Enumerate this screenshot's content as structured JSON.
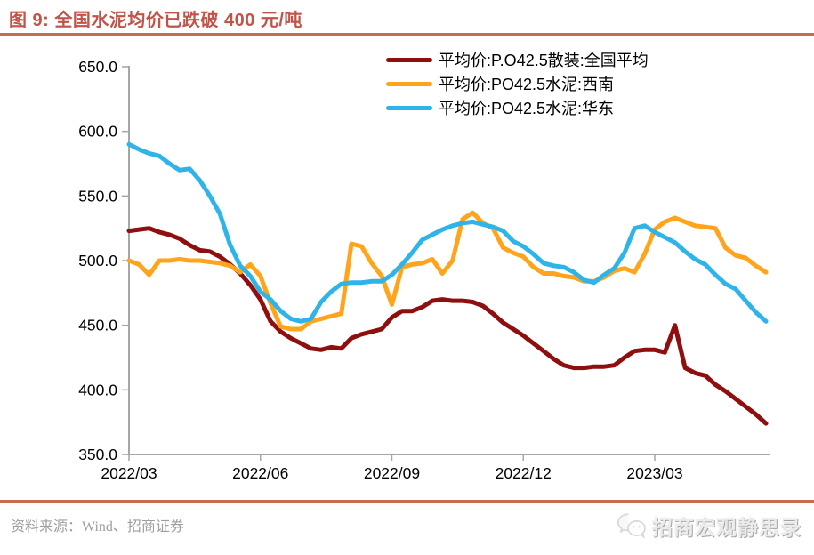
{
  "page": {
    "title": "图 9:  全国水泥均价已跌破 400 元/吨"
  },
  "footer": {
    "source": "资料来源：Wind、招商证券",
    "watermark": "招商宏观静思录",
    "wechat_icon": "wechat-chat-bubbles"
  },
  "colors": {
    "title": "#C15449",
    "divider": "#C9694F",
    "axis": "#A6A6A6",
    "tick_label": "#000000",
    "footer_text": "#9E9E9E",
    "series_national": "#8F0F0F",
    "series_southwest": "#FFA41B",
    "series_east": "#2FB4E9"
  },
  "chart_data": {
    "type": "line",
    "title": "",
    "xlabel": "",
    "ylabel": "",
    "ylim": [
      350,
      650
    ],
    "y_tick_step": 50,
    "y_tick_decimals": 1,
    "grid": false,
    "legend_position": "top-center",
    "x_tick_labels": [
      "2022/03",
      "2022/06",
      "2022/09",
      "2022/12",
      "2023/03"
    ],
    "x_tick_weeks": [
      0,
      13,
      26,
      39,
      52
    ],
    "x_unit": "week",
    "series": [
      {
        "name": "平均价:P.O42.5散装:全国平均",
        "color_key": "series_national",
        "values": [
          523,
          524,
          525,
          522,
          520,
          517,
          512,
          508,
          507,
          503,
          497,
          490,
          481,
          470,
          453,
          445,
          440,
          436,
          432,
          431,
          433,
          432,
          440,
          443,
          445,
          447,
          456,
          461,
          461,
          464,
          469,
          470,
          469,
          469,
          468,
          465,
          459,
          452,
          447,
          442,
          436,
          430,
          424,
          419,
          417,
          417,
          418,
          418,
          419,
          425,
          430,
          431,
          431,
          429,
          450,
          417,
          413,
          411,
          404,
          399,
          393,
          387,
          381,
          374
        ]
      },
      {
        "name": "平均价:PO42.5水泥:西南",
        "color_key": "series_southwest",
        "values": [
          500,
          497,
          489,
          500,
          500,
          501,
          500,
          500,
          499,
          498,
          496,
          491,
          497,
          488,
          467,
          449,
          447,
          447,
          453,
          455,
          457,
          459,
          513,
          511,
          498,
          488,
          466,
          495,
          497,
          498,
          501,
          490,
          500,
          532,
          537,
          529,
          525,
          510,
          506,
          503,
          495,
          490,
          490,
          488,
          487,
          484,
          484,
          487,
          492,
          494,
          491,
          505,
          524,
          530,
          533,
          530,
          527,
          526,
          525,
          510,
          504,
          502,
          496,
          491
        ]
      },
      {
        "name": "平均价:PO42.5水泥:华东",
        "color_key": "series_east",
        "values": [
          590,
          586,
          583,
          581,
          575,
          570,
          571,
          562,
          550,
          536,
          512,
          496,
          488,
          476,
          470,
          461,
          455,
          453,
          455,
          468,
          476,
          482,
          483,
          483,
          484,
          484,
          489,
          497,
          506,
          516,
          520,
          524,
          527,
          529,
          530,
          528,
          526,
          523,
          515,
          511,
          505,
          498,
          496,
          495,
          491,
          485,
          483,
          489,
          494,
          506,
          525,
          527,
          522,
          518,
          514,
          507,
          501,
          497,
          489,
          482,
          478,
          469,
          460,
          453
        ]
      }
    ]
  }
}
